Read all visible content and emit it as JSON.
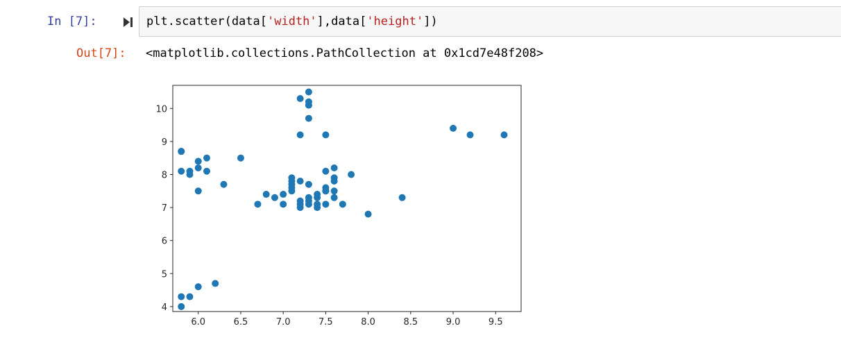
{
  "cell": {
    "in_prompt": "In [7]:",
    "code": {
      "prefix": "plt.scatter(data[",
      "str1": "'width'",
      "mid": "],data[",
      "str2": "'height'",
      "suffix": "])"
    },
    "out_prompt": "Out[7]:",
    "out_text": "<matplotlib.collections.PathCollection at 0x1cd7e48f208>",
    "run_icon": "run-step-icon"
  },
  "colors": {
    "marker": "#1f77b4",
    "in_prompt": "#303f9f",
    "out_prompt": "#d84315",
    "string": "#ba2121"
  },
  "chart_data": {
    "type": "scatter",
    "title": "",
    "xlabel": "",
    "ylabel": "",
    "xlim": [
      5.7,
      9.8
    ],
    "ylim": [
      3.85,
      10.7
    ],
    "x_ticks": [
      "6.0",
      "6.5",
      "7.0",
      "7.5",
      "8.0",
      "8.5",
      "9.0",
      "9.5"
    ],
    "y_ticks": [
      "4",
      "5",
      "6",
      "7",
      "8",
      "9",
      "10"
    ],
    "grid": false,
    "x": [
      5.8,
      5.8,
      5.9,
      5.9,
      6.0,
      6.0,
      6.1,
      6.1,
      6.0,
      5.8,
      6.3,
      6.5,
      5.8,
      5.8,
      5.9,
      6.0,
      6.2,
      6.7,
      6.8,
      6.9,
      7.0,
      7.0,
      7.1,
      7.1,
      7.1,
      7.1,
      7.1,
      7.2,
      7.2,
      7.2,
      7.2,
      7.3,
      7.3,
      7.3,
      7.3,
      7.4,
      7.4,
      7.4,
      7.4,
      7.5,
      7.5,
      7.5,
      7.5,
      7.5,
      7.6,
      7.6,
      7.6,
      7.6,
      7.6,
      7.7,
      7.8,
      8.0,
      8.4,
      7.2,
      7.2,
      7.3,
      7.3,
      7.3,
      7.3,
      7.3,
      7.5,
      9.0,
      9.2,
      9.6
    ],
    "y": [
      8.7,
      8.1,
      8.1,
      8.0,
      8.4,
      8.2,
      8.5,
      8.1,
      7.5,
      8.7,
      7.7,
      8.5,
      4.3,
      4.0,
      4.3,
      4.6,
      4.7,
      7.1,
      7.4,
      7.3,
      7.4,
      7.1,
      7.5,
      7.6,
      7.8,
      7.9,
      7.7,
      7.8,
      7.2,
      7.1,
      7.0,
      7.7,
      7.3,
      7.2,
      7.1,
      7.4,
      7.3,
      7.1,
      7.0,
      8.1,
      7.6,
      7.5,
      7.1,
      7.5,
      8.2,
      7.9,
      7.8,
      7.5,
      7.3,
      7.1,
      8.0,
      6.8,
      7.3,
      9.2,
      10.3,
      10.5,
      10.2,
      10.1,
      10.1,
      9.7,
      9.2,
      9.4,
      9.2,
      9.2
    ]
  }
}
